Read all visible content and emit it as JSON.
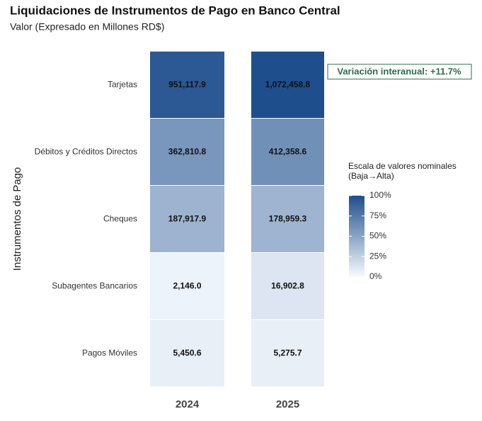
{
  "chart_data": {
    "type": "heatmap",
    "title": "Liquidaciones de Instrumentos de Pago en Banco Central",
    "subtitle": "Valor (Expresado en Millones RD$)",
    "y_label": "Instrumentos de Pago",
    "categories": [
      "Tarjetas",
      "Débitos y Créditos Directos",
      "Cheques",
      "Subagentes Bancarios",
      "Pagos Móviles"
    ],
    "x": [
      "2024",
      "2025"
    ],
    "series": [
      {
        "name": "2024",
        "values": [
          951117.9,
          362810.8,
          187917.9,
          2146.0,
          5450.6
        ],
        "value_labels": [
          "951,117.9",
          "362,810.8",
          "187,917.9",
          "2,146.0",
          "5,450.6"
        ]
      },
      {
        "name": "2025",
        "values": [
          1072458.8,
          412358.6,
          178959.3,
          16902.8,
          5275.7
        ],
        "value_labels": [
          "1,072,458.8",
          "412,358.6",
          "178,959.3",
          "16,902.8",
          "5,275.7"
        ]
      }
    ],
    "colorscale": [
      "#f7fbff",
      "#1f4e8c"
    ],
    "annotation": "Variación interanual: +11.7%",
    "annotation_color": "#2e6b4f",
    "legend_title": [
      "Escala de valores nominales",
      "(Baja→Alta)"
    ],
    "colorbar_lim": [
      0,
      100
    ],
    "colorbar_ticks": [
      {
        "value": 0,
        "label": "0%"
      },
      {
        "value": 25,
        "label": "25%"
      },
      {
        "value": 50,
        "label": "50%"
      },
      {
        "value": 75,
        "label": "75%"
      },
      {
        "value": 100,
        "label": "100%"
      }
    ]
  }
}
